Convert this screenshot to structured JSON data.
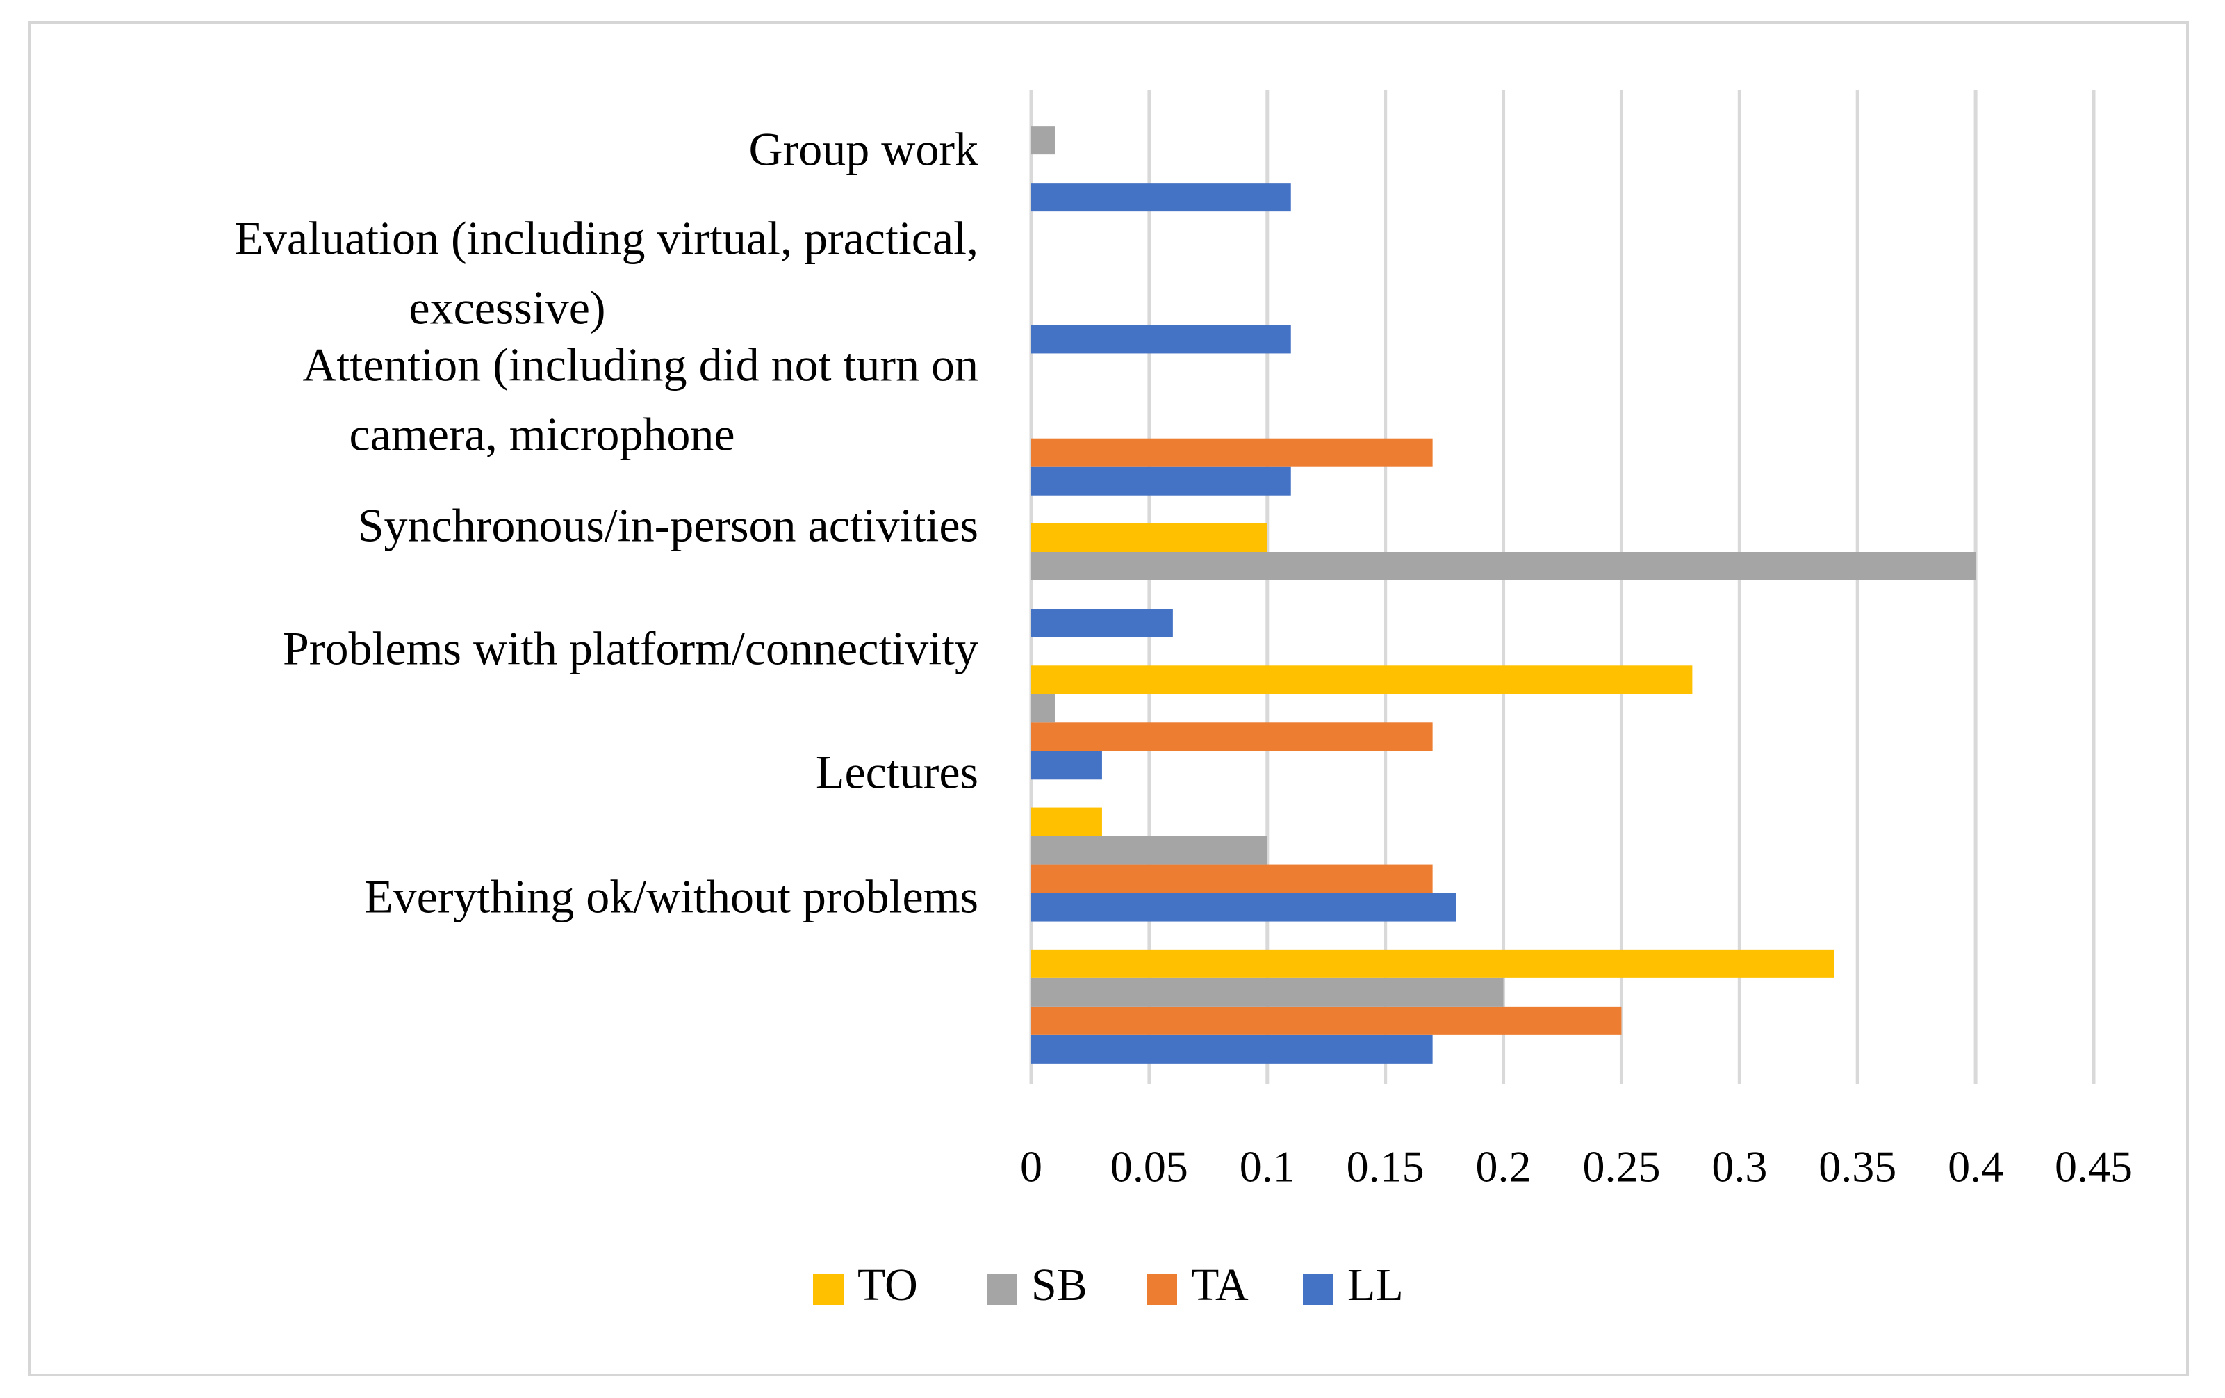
{
  "chart_data": {
    "type": "bar",
    "orientation": "horizontal",
    "title": "",
    "xlabel": "",
    "ylabel": "",
    "xlim": [
      0,
      0.45
    ],
    "x_ticks": [
      0,
      0.05,
      0.1,
      0.15,
      0.2,
      0.25,
      0.3,
      0.35,
      0.4,
      0.45
    ],
    "x_tick_labels": [
      "0",
      "0.05",
      "0.1",
      "0.15",
      "0.2",
      "0.25",
      "0.3",
      "0.35",
      "0.4",
      "0.45"
    ],
    "grid": true,
    "legend_position": "bottom",
    "categories": [
      "Group work",
      "Evaluation (including virtual, practical, excessive)",
      "Attention (including did not turn on camera, microphone",
      "Synchronous/in-person activities",
      "Problems with platform/connectivity",
      "Lectures",
      "Everything ok/without problems"
    ],
    "category_label_lines": [
      [
        "Group work"
      ],
      [
        "Evaluation (including virtual, practical,",
        "excessive)"
      ],
      [
        "Attention (including did not turn on",
        "camera, microphone"
      ],
      [
        "Synchronous/in-person activities"
      ],
      [
        "Problems with platform/connectivity"
      ],
      [
        "Lectures"
      ],
      [
        "Everything ok/without problems"
      ]
    ],
    "series": [
      {
        "name": "TO",
        "color": "#FFC000",
        "values": [
          0,
          0,
          0,
          0.1,
          0.28,
          0.03,
          0.34
        ]
      },
      {
        "name": "SB",
        "color": "#A5A5A5",
        "values": [
          0.01,
          0,
          0,
          0.4,
          0.01,
          0.1,
          0.2
        ]
      },
      {
        "name": "TA",
        "color": "#ED7D31",
        "values": [
          0,
          0,
          0.17,
          0,
          0.17,
          0.17,
          0.25
        ]
      },
      {
        "name": "LL",
        "color": "#4472C4",
        "values": [
          0.11,
          0.11,
          0.11,
          0.06,
          0.03,
          0.18,
          0.17
        ]
      }
    ]
  },
  "colors": {
    "gridline": "#D9D9D9",
    "frame": "#D6D6D6",
    "text": "#000000"
  }
}
